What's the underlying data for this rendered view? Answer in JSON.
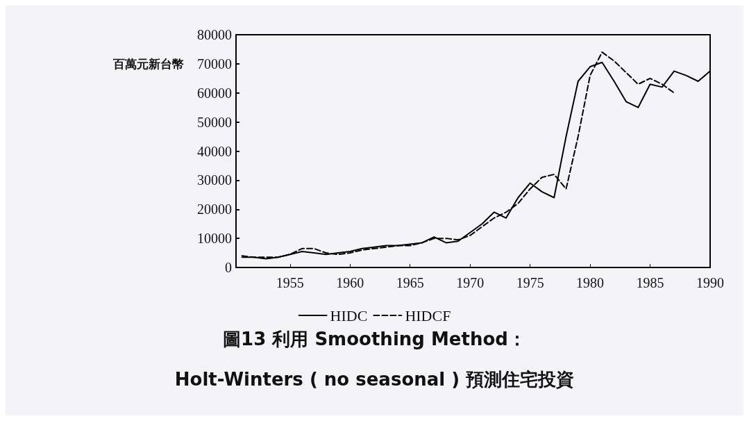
{
  "chart_data": {
    "type": "line",
    "title": "圖13 利用 Smoothing Method：",
    "subtitle": "Holt-Winters ( no seasonal ) 預測住宅投資",
    "ylabel": "百萬元新台幣",
    "x": [
      1951,
      1952,
      1953,
      1954,
      1955,
      1956,
      1957,
      1958,
      1959,
      1960,
      1961,
      1962,
      1963,
      1964,
      1965,
      1966,
      1967,
      1968,
      1969,
      1970,
      1971,
      1972,
      1973,
      1974,
      1975,
      1976,
      1977,
      1978,
      1979,
      1980,
      1981,
      1982,
      1983,
      1984,
      1985,
      1986,
      1987,
      1988,
      1989,
      1990
    ],
    "series": [
      {
        "name": "HIDC",
        "color": "#000000",
        "line_style": "solid",
        "values": [
          3500,
          3500,
          3000,
          3500,
          4500,
          5500,
          5000,
          4500,
          5000,
          5500,
          6500,
          7000,
          7500,
          7500,
          8000,
          8500,
          10500,
          8500,
          9000,
          12000,
          15000,
          19000,
          17000,
          24000,
          29000,
          26000,
          24000,
          45000,
          64000,
          69000,
          70500,
          64000,
          57000,
          55000,
          63000,
          62000,
          67500,
          66000,
          64000,
          67500
        ]
      },
      {
        "name": "HIDCF",
        "color": "#000000",
        "line_style": "dashed",
        "x": [
          1951,
          1952,
          1953,
          1954,
          1955,
          1956,
          1957,
          1958,
          1959,
          1960,
          1961,
          1962,
          1963,
          1964,
          1965,
          1966,
          1967,
          1968,
          1969,
          1970,
          1971,
          1972,
          1973,
          1974,
          1975,
          1976,
          1977,
          1978,
          1979,
          1980,
          1981,
          1982,
          1983,
          1984,
          1985,
          1986,
          1987
        ],
        "values": [
          4000,
          3500,
          3500,
          3500,
          4500,
          6500,
          6500,
          5000,
          4500,
          5000,
          6000,
          6500,
          7000,
          7500,
          7500,
          8500,
          10000,
          10000,
          9500,
          11000,
          14000,
          17000,
          19000,
          22000,
          27000,
          31000,
          32000,
          27000,
          45000,
          66000,
          74000,
          71000,
          67000,
          63000,
          65000,
          63000,
          60000
        ]
      }
    ],
    "xlim": [
      1950.5,
      1990
    ],
    "xticks": [
      1955,
      1960,
      1965,
      1970,
      1975,
      1980,
      1985,
      1990
    ],
    "ylim": [
      0,
      80000
    ],
    "yticks": [
      0,
      10000,
      20000,
      30000,
      40000,
      50000,
      60000,
      70000,
      80000
    ],
    "legend": "bottom"
  }
}
